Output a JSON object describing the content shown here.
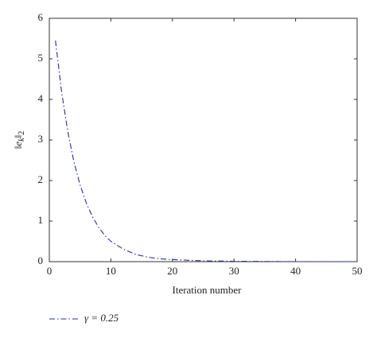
{
  "chart_data": {
    "type": "line",
    "xlabel": "Iteration number",
    "ylabel": [
      "‖e",
      "k",
      "‖",
      "2"
    ],
    "x": [
      1,
      2,
      3,
      4,
      5,
      6,
      7,
      8,
      9,
      10,
      12,
      14,
      16,
      18,
      20,
      25,
      30,
      40,
      50
    ],
    "series": [
      {
        "name": "γ = 0.25",
        "color": "#2b2b9c",
        "values": [
          5.45,
          4.18,
          3.21,
          2.46,
          1.89,
          1.45,
          1.11,
          0.85,
          0.65,
          0.5,
          0.31,
          0.18,
          0.11,
          0.07,
          0.05,
          0.02,
          0.01,
          0,
          0
        ]
      }
    ],
    "xlim": [
      0,
      50
    ],
    "xticks": [
      0,
      10,
      20,
      30,
      40,
      50
    ],
    "ylim": [
      0,
      6
    ],
    "yticks": [
      0,
      1,
      2,
      3,
      4,
      5,
      6
    ],
    "legend": "bottom-left"
  }
}
